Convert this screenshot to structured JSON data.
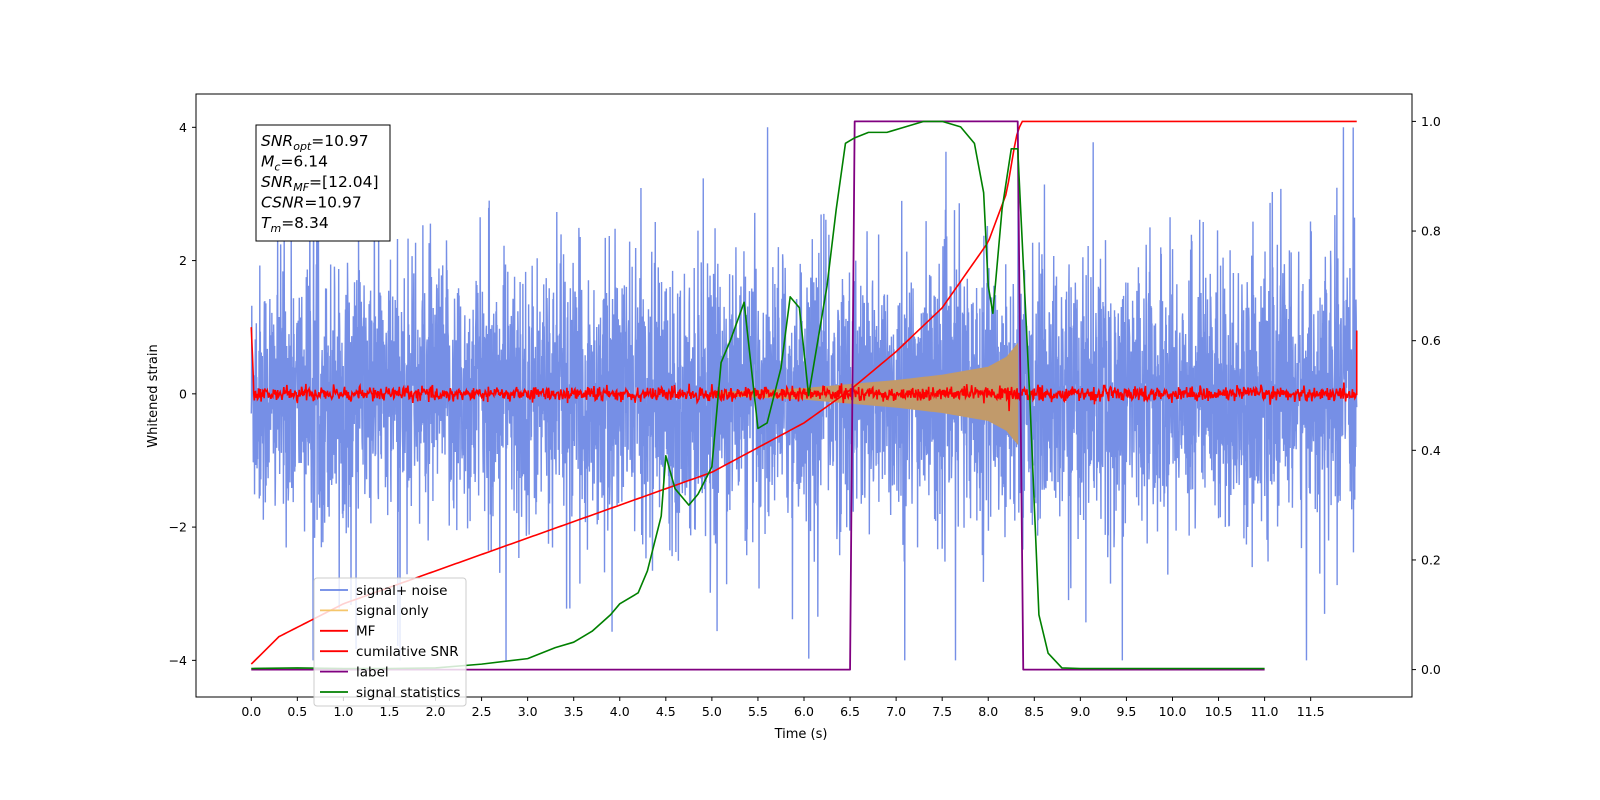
{
  "chart_data": {
    "type": "line",
    "title": "",
    "xlabel": "Time (s)",
    "ylabel": "Whitened strain",
    "xlim": [
      -0.6,
      12.6
    ],
    "ylim": [
      -4.55,
      4.5
    ],
    "y2lim": [
      -0.05,
      1.05
    ],
    "grid": false,
    "legend_position": "lower-left",
    "x_ticks": [
      "0.0",
      "0.5",
      "1.0",
      "1.5",
      "2.0",
      "2.5",
      "3.0",
      "3.5",
      "4.0",
      "4.5",
      "5.0",
      "5.5",
      "6.0",
      "6.5",
      "7.0",
      "7.5",
      "8.0",
      "8.5",
      "9.0",
      "9.5",
      "10.0",
      "10.5",
      "11.0",
      "11.5"
    ],
    "y_ticks": [
      "4",
      "2",
      "0",
      "−2",
      "−4"
    ],
    "y2_ticks": [
      "1.0",
      "0.8",
      "0.6",
      "0.4",
      "0.2",
      "0.0"
    ],
    "annotation": {
      "lines": [
        {
          "sym": "SNR",
          "sub": "opt",
          "val": "=10.97"
        },
        {
          "sym": "M",
          "sub": "c",
          "val": "=6.14"
        },
        {
          "sym": "SNR",
          "sub": "MF",
          "val": "=[12.04]"
        },
        {
          "sym": "CSNR",
          "sub": "",
          "val": "=10.97"
        },
        {
          "sym": "T",
          "sub": "m",
          "val": "=8.34"
        }
      ]
    },
    "series": [
      {
        "name": "signal+ noise",
        "color": "#6a86e4",
        "axis": "left",
        "noise_band": [
          -1.6,
          1.6
        ],
        "peak_range": [
          -4.0,
          4.0
        ],
        "x_range": [
          0.0,
          12.0
        ]
      },
      {
        "name": "signal only",
        "color": "#f5c66b",
        "axis": "left",
        "envelope": {
          "x": [
            5.0,
            6.0,
            7.0,
            7.5,
            8.0,
            8.2,
            8.32
          ],
          "amp": [
            0.02,
            0.08,
            0.2,
            0.28,
            0.4,
            0.55,
            0.75
          ]
        }
      },
      {
        "name": "MF",
        "color": "#ff0000",
        "axis": "left",
        "baseline": 0.0,
        "noise_amp": 0.12,
        "edge_value": 1.0
      },
      {
        "name": "cumilative SNR",
        "color": "#ff0000",
        "axis": "right",
        "x": [
          0.0,
          0.3,
          1.0,
          2.0,
          3.0,
          4.0,
          5.0,
          6.0,
          6.5,
          7.0,
          7.5,
          8.0,
          8.2,
          8.3,
          8.36,
          12.0
        ],
        "values": [
          0.01,
          0.06,
          0.12,
          0.18,
          0.24,
          0.3,
          0.36,
          0.45,
          0.51,
          0.58,
          0.66,
          0.78,
          0.87,
          0.97,
          1.0,
          1.0
        ]
      },
      {
        "name": "label",
        "color": "#800080",
        "axis": "right",
        "x": [
          0.0,
          6.5,
          6.55,
          8.32,
          8.38,
          11.0
        ],
        "values": [
          0.0,
          0.0,
          1.0,
          1.0,
          0.0,
          0.0
        ]
      },
      {
        "name": "signal statistics",
        "color": "#008000",
        "axis": "right",
        "x": [
          0.0,
          0.5,
          1.0,
          1.5,
          2.0,
          2.5,
          3.0,
          3.3,
          3.5,
          3.7,
          3.9,
          4.0,
          4.2,
          4.3,
          4.45,
          4.5,
          4.6,
          4.75,
          4.85,
          5.0,
          5.1,
          5.2,
          5.35,
          5.5,
          5.6,
          5.75,
          5.85,
          5.95,
          6.05,
          6.15,
          6.25,
          6.35,
          6.45,
          6.55,
          6.7,
          6.9,
          7.1,
          7.3,
          7.5,
          7.7,
          7.85,
          7.95,
          8.0,
          8.05,
          8.15,
          8.25,
          8.32,
          8.45,
          8.55,
          8.65,
          8.8,
          9.0,
          11.0
        ],
        "values": [
          0.002,
          0.003,
          0.002,
          0.002,
          0.003,
          0.01,
          0.02,
          0.04,
          0.05,
          0.07,
          0.1,
          0.12,
          0.14,
          0.18,
          0.28,
          0.39,
          0.33,
          0.3,
          0.32,
          0.37,
          0.56,
          0.6,
          0.67,
          0.44,
          0.45,
          0.55,
          0.68,
          0.66,
          0.5,
          0.6,
          0.7,
          0.84,
          0.96,
          0.97,
          0.98,
          0.98,
          0.99,
          1.0,
          1.0,
          0.99,
          0.96,
          0.87,
          0.7,
          0.65,
          0.84,
          0.95,
          0.95,
          0.5,
          0.1,
          0.03,
          0.003,
          0.002,
          0.002
        ]
      }
    ]
  }
}
